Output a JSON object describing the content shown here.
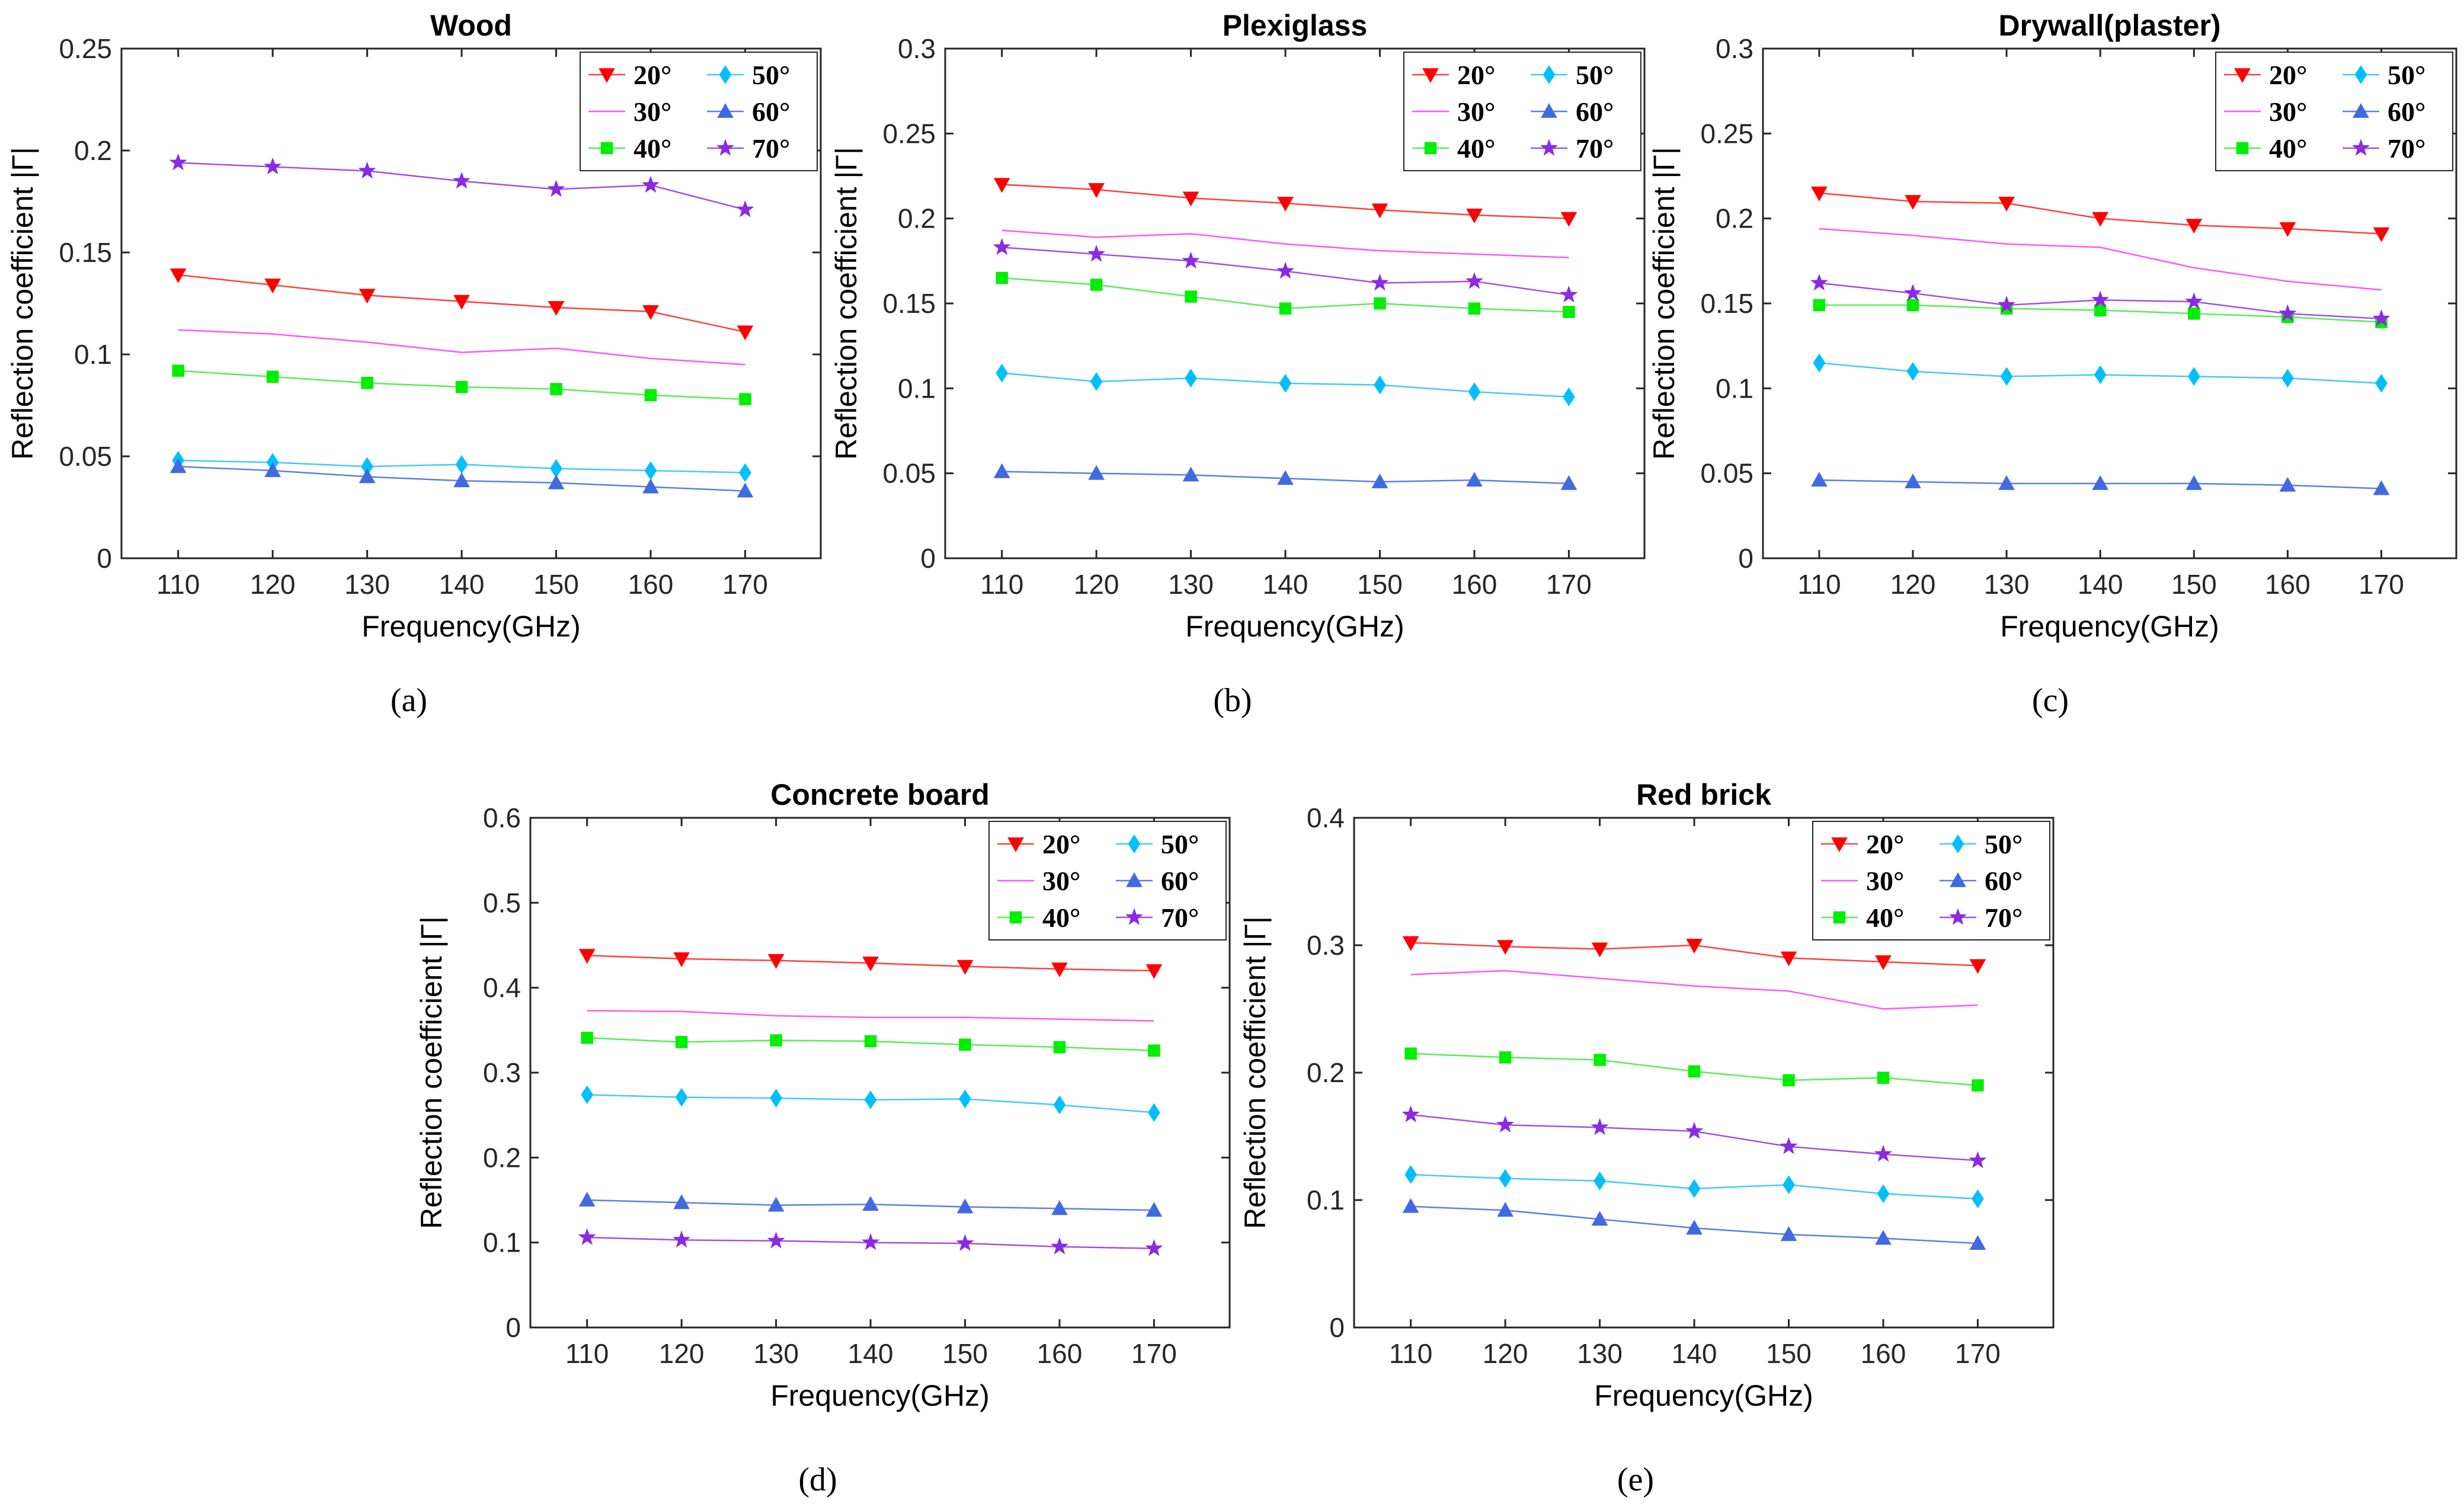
{
  "chart_data": [
    {
      "type": "line",
      "title": "Wood",
      "caption": "(a)",
      "xlabel": "Frequency(GHz)",
      "ylabel": "Reflection coefficient |Γ|",
      "x": [
        110,
        120,
        130,
        140,
        150,
        160,
        170
      ],
      "xticks": [
        "110",
        "120",
        "130",
        "140",
        "150",
        "160",
        "170"
      ],
      "ylim": [
        0,
        0.25
      ],
      "yticks": [
        "0",
        "0.05",
        "0.1",
        "0.15",
        "0.2",
        "0.25"
      ],
      "grid": false,
      "legend_position": "top-right",
      "series": [
        {
          "name": "20°",
          "values": [
            0.139,
            0.134,
            0.129,
            0.126,
            0.123,
            0.121,
            0.111
          ]
        },
        {
          "name": "30°",
          "values": [
            0.112,
            0.11,
            0.106,
            0.101,
            0.103,
            0.098,
            0.095
          ]
        },
        {
          "name": "40°",
          "values": [
            0.092,
            0.089,
            0.086,
            0.084,
            0.083,
            0.08,
            0.078
          ]
        },
        {
          "name": "50°",
          "values": [
            0.048,
            0.047,
            0.045,
            0.046,
            0.044,
            0.043,
            0.042
          ]
        },
        {
          "name": "60°",
          "values": [
            0.045,
            0.043,
            0.04,
            0.038,
            0.037,
            0.035,
            0.033
          ]
        },
        {
          "name": "70°",
          "values": [
            0.194,
            0.192,
            0.19,
            0.185,
            0.181,
            0.183,
            0.171
          ]
        }
      ]
    },
    {
      "type": "line",
      "title": "Plexiglass",
      "caption": "(b)",
      "xlabel": "Frequency(GHz)",
      "ylabel": "Reflection coefficient |Γ|",
      "x": [
        110,
        120,
        130,
        140,
        150,
        160,
        170
      ],
      "xticks": [
        "110",
        "120",
        "130",
        "140",
        "150",
        "160",
        "170"
      ],
      "ylim": [
        0,
        0.3
      ],
      "yticks": [
        "0",
        "0.05",
        "0.1",
        "0.15",
        "0.2",
        "0.25",
        "0.3"
      ],
      "grid": false,
      "legend_position": "top-right",
      "series": [
        {
          "name": "20°",
          "values": [
            0.22,
            0.217,
            0.212,
            0.209,
            0.205,
            0.202,
            0.2
          ]
        },
        {
          "name": "30°",
          "values": [
            0.193,
            0.189,
            0.191,
            0.185,
            0.181,
            0.179,
            0.177
          ]
        },
        {
          "name": "40°",
          "values": [
            0.165,
            0.161,
            0.154,
            0.147,
            0.15,
            0.147,
            0.145
          ]
        },
        {
          "name": "50°",
          "values": [
            0.109,
            0.104,
            0.106,
            0.103,
            0.102,
            0.098,
            0.095
          ]
        },
        {
          "name": "60°",
          "values": [
            0.051,
            0.05,
            0.049,
            0.047,
            0.045,
            0.046,
            0.044
          ]
        },
        {
          "name": "70°",
          "values": [
            0.183,
            0.179,
            0.175,
            0.169,
            0.162,
            0.163,
            0.155
          ]
        }
      ]
    },
    {
      "type": "line",
      "title": "Drywall(plaster)",
      "caption": "(c)",
      "xlabel": "Frequency(GHz)",
      "ylabel": "Reflection coefficient |Γ|",
      "x": [
        110,
        120,
        130,
        140,
        150,
        160,
        170
      ],
      "xticks": [
        "110",
        "120",
        "130",
        "140",
        "150",
        "160",
        "170"
      ],
      "ylim": [
        0,
        0.3
      ],
      "yticks": [
        "0",
        "0.05",
        "0.1",
        "0.15",
        "0.2",
        "0.25",
        "0.3"
      ],
      "grid": false,
      "legend_position": "top-right",
      "series": [
        {
          "name": "20°",
          "values": [
            0.215,
            0.21,
            0.209,
            0.2,
            0.196,
            0.194,
            0.191
          ]
        },
        {
          "name": "30°",
          "values": [
            0.194,
            0.19,
            0.185,
            0.183,
            0.171,
            0.163,
            0.158
          ]
        },
        {
          "name": "40°",
          "values": [
            0.149,
            0.149,
            0.147,
            0.146,
            0.144,
            0.142,
            0.139
          ]
        },
        {
          "name": "50°",
          "values": [
            0.115,
            0.11,
            0.107,
            0.108,
            0.107,
            0.106,
            0.103
          ]
        },
        {
          "name": "60°",
          "values": [
            0.046,
            0.045,
            0.044,
            0.044,
            0.044,
            0.043,
            0.041
          ]
        },
        {
          "name": "70°",
          "values": [
            0.162,
            0.156,
            0.149,
            0.152,
            0.151,
            0.144,
            0.141
          ]
        }
      ]
    },
    {
      "type": "line",
      "title": "Concrete board",
      "caption": "(d)",
      "xlabel": "Frequency(GHz)",
      "ylabel": "Reflection coefficient |Γ|",
      "x": [
        110,
        120,
        130,
        140,
        150,
        160,
        170
      ],
      "xticks": [
        "110",
        "120",
        "130",
        "140",
        "150",
        "160",
        "170"
      ],
      "ylim": [
        0,
        0.6
      ],
      "yticks": [
        "0",
        "0.1",
        "0.2",
        "0.3",
        "0.4",
        "0.5",
        "0.6"
      ],
      "grid": false,
      "legend_position": "top-right",
      "series": [
        {
          "name": "20°",
          "values": [
            0.438,
            0.434,
            0.432,
            0.429,
            0.425,
            0.422,
            0.42
          ]
        },
        {
          "name": "30°",
          "values": [
            0.373,
            0.372,
            0.367,
            0.365,
            0.365,
            0.363,
            0.361
          ]
        },
        {
          "name": "40°",
          "values": [
            0.341,
            0.336,
            0.338,
            0.337,
            0.333,
            0.33,
            0.326
          ]
        },
        {
          "name": "50°",
          "values": [
            0.274,
            0.271,
            0.27,
            0.268,
            0.269,
            0.262,
            0.253
          ]
        },
        {
          "name": "60°",
          "values": [
            0.15,
            0.147,
            0.144,
            0.145,
            0.142,
            0.14,
            0.138
          ]
        },
        {
          "name": "70°",
          "values": [
            0.106,
            0.103,
            0.102,
            0.1,
            0.099,
            0.095,
            0.093
          ]
        }
      ]
    },
    {
      "type": "line",
      "title": "Red brick",
      "caption": "(e)",
      "xlabel": "Frequency(GHz)",
      "ylabel": "Reflection coefficient |Γ|",
      "x": [
        110,
        120,
        130,
        140,
        150,
        160,
        170
      ],
      "xticks": [
        "110",
        "120",
        "130",
        "140",
        "150",
        "160",
        "170"
      ],
      "ylim": [
        0,
        0.4
      ],
      "yticks": [
        "0",
        "0.1",
        "0.2",
        "0.3",
        "0.4"
      ],
      "grid": false,
      "legend_position": "top-right",
      "series": [
        {
          "name": "20°",
          "values": [
            0.302,
            0.299,
            0.297,
            0.3,
            0.29,
            0.287,
            0.284
          ]
        },
        {
          "name": "30°",
          "values": [
            0.277,
            0.28,
            0.274,
            0.268,
            0.264,
            0.25,
            0.253
          ]
        },
        {
          "name": "40°",
          "values": [
            0.215,
            0.212,
            0.21,
            0.201,
            0.194,
            0.196,
            0.19
          ]
        },
        {
          "name": "50°",
          "values": [
            0.12,
            0.117,
            0.115,
            0.109,
            0.112,
            0.105,
            0.101
          ]
        },
        {
          "name": "60°",
          "values": [
            0.095,
            0.092,
            0.085,
            0.078,
            0.073,
            0.07,
            0.066
          ]
        },
        {
          "name": "70°",
          "values": [
            0.167,
            0.159,
            0.157,
            0.154,
            0.142,
            0.136,
            0.131
          ]
        }
      ]
    }
  ],
  "series_style": [
    {
      "marker": "triangle-down",
      "color": "#ff0000",
      "line": "#ff4040"
    },
    {
      "marker": "circle",
      "color": "#ff00ff",
      "line": "#ff55ff"
    },
    {
      "marker": "square",
      "color": "#00ee00",
      "line": "#55ee55"
    },
    {
      "marker": "diamond",
      "color": "#00bfff",
      "line": "#44c8ff"
    },
    {
      "marker": "triangle-up",
      "color": "#4169e1",
      "line": "#5a7fe8"
    },
    {
      "marker": "star",
      "color": "#8a2be2",
      "line": "#a050e8"
    }
  ]
}
